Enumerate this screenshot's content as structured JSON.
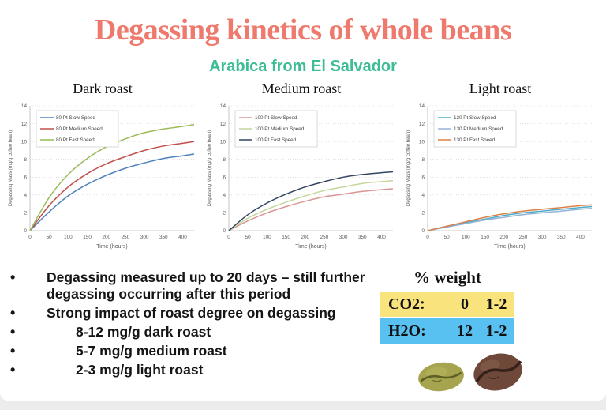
{
  "slide": {
    "title": "Degassing kinetics of whole beans",
    "subtitle": "Arabica from El Salvador",
    "title_color": "#ee796d",
    "subtitle_color": "#3cbd96"
  },
  "chart_data": [
    {
      "type": "line",
      "title": "Dark roast",
      "xlabel": "Time (hours)",
      "ylabel": "Degassing Mass (mg/g coffee bean)",
      "xlim": [
        0,
        430
      ],
      "ylim": [
        0,
        14
      ],
      "x_ticks": [
        0,
        50,
        100,
        150,
        200,
        250,
        300,
        350,
        400
      ],
      "y_ticks": [
        0,
        2,
        4,
        6,
        8,
        10,
        12,
        14
      ],
      "grid": "horizontal-dotted",
      "legend_position": "top-left",
      "x": [
        0,
        50,
        100,
        150,
        200,
        250,
        300,
        350,
        400,
        430
      ],
      "series": [
        {
          "name": "80 Pt Slow Speed",
          "color": "#4f81bd",
          "values": [
            0,
            2.1,
            3.9,
            5.2,
            6.2,
            7.0,
            7.6,
            8.1,
            8.4,
            8.6
          ]
        },
        {
          "name": "80 Pt Medium Speed",
          "color": "#c0504d",
          "values": [
            0,
            2.8,
            4.9,
            6.4,
            7.5,
            8.3,
            9.0,
            9.5,
            9.8,
            10.0
          ]
        },
        {
          "name": "80 Pt Fast Speed",
          "color": "#9bbb59",
          "values": [
            0,
            3.7,
            6.3,
            8.1,
            9.4,
            10.3,
            11.0,
            11.4,
            11.7,
            11.9
          ]
        }
      ]
    },
    {
      "type": "line",
      "title": "Medium roast",
      "xlabel": "Time (hours)",
      "ylabel": "Degassing Mass (mg/g coffee bean)",
      "xlim": [
        0,
        430
      ],
      "ylim": [
        0,
        14
      ],
      "x_ticks": [
        0,
        50,
        100,
        150,
        200,
        250,
        300,
        350,
        400
      ],
      "y_ticks": [
        0,
        2,
        4,
        6,
        8,
        10,
        12,
        14
      ],
      "grid": "horizontal-dotted",
      "legend_position": "top-left",
      "x": [
        0,
        50,
        100,
        150,
        200,
        250,
        300,
        350,
        400,
        430
      ],
      "series": [
        {
          "name": "100 Pt Slow Speed",
          "color": "#d99694",
          "values": [
            0,
            1.1,
            2.0,
            2.7,
            3.3,
            3.8,
            4.1,
            4.4,
            4.6,
            4.7
          ]
        },
        {
          "name": "100 Pt Medium Speed",
          "color": "#c3d69b",
          "values": [
            0,
            1.4,
            2.4,
            3.2,
            3.9,
            4.5,
            4.9,
            5.3,
            5.5,
            5.6
          ]
        },
        {
          "name": "100 Pt Fast Speed",
          "color": "#324562",
          "values": [
            0,
            1.8,
            3.1,
            4.1,
            4.9,
            5.5,
            6.0,
            6.3,
            6.5,
            6.6
          ]
        }
      ]
    },
    {
      "type": "line",
      "title": "Light roast",
      "xlabel": "Time (hours)",
      "ylabel": "Degassing Mass (mg/g coffee bean)",
      "xlim": [
        0,
        430
      ],
      "ylim": [
        0,
        14
      ],
      "x_ticks": [
        0,
        50,
        100,
        150,
        200,
        250,
        300,
        350,
        400
      ],
      "y_ticks": [
        0,
        2,
        4,
        6,
        8,
        10,
        12,
        14
      ],
      "grid": "horizontal-dotted",
      "legend_position": "top-left",
      "x": [
        0,
        50,
        100,
        150,
        200,
        250,
        300,
        350,
        400,
        430
      ],
      "series": [
        {
          "name": "130 Pt Slow Speed",
          "color": "#4bacc6",
          "values": [
            0,
            0.5,
            0.9,
            1.3,
            1.7,
            2.0,
            2.2,
            2.4,
            2.6,
            2.7
          ]
        },
        {
          "name": "130 Pt Medium Speed",
          "color": "#95b3d7",
          "values": [
            0,
            0.4,
            0.8,
            1.2,
            1.5,
            1.8,
            2.0,
            2.2,
            2.4,
            2.5
          ]
        },
        {
          "name": "130 Pt Fast Speed",
          "color": "#dd8047",
          "values": [
            0,
            0.5,
            1.0,
            1.5,
            1.9,
            2.2,
            2.4,
            2.6,
            2.8,
            2.9
          ]
        }
      ]
    }
  ],
  "bullets": [
    {
      "text": "Degassing measured up to 20 days – still further degassing occurring after this period",
      "indent": 0
    },
    {
      "text": "Strong impact of roast degree on degassing",
      "indent": 0
    },
    {
      "text": "8-12 mg/g dark roast",
      "indent": 1
    },
    {
      "text": "5-7 mg/g medium roast",
      "indent": 1
    },
    {
      "text": "2-3 mg/g light roast",
      "indent": 1
    }
  ],
  "weight_table": {
    "header": "% weight",
    "rows": [
      {
        "label": "CO2:",
        "col1": "0",
        "col2": "1-2",
        "bg": "#f9e37c"
      },
      {
        "label": "H2O:",
        "col1": "12",
        "col2": "1-2",
        "bg": "#58c1f2"
      }
    ]
  },
  "images": {
    "green_bean": "green-coffee-bean",
    "roasted_bean": "roasted-coffee-bean"
  }
}
